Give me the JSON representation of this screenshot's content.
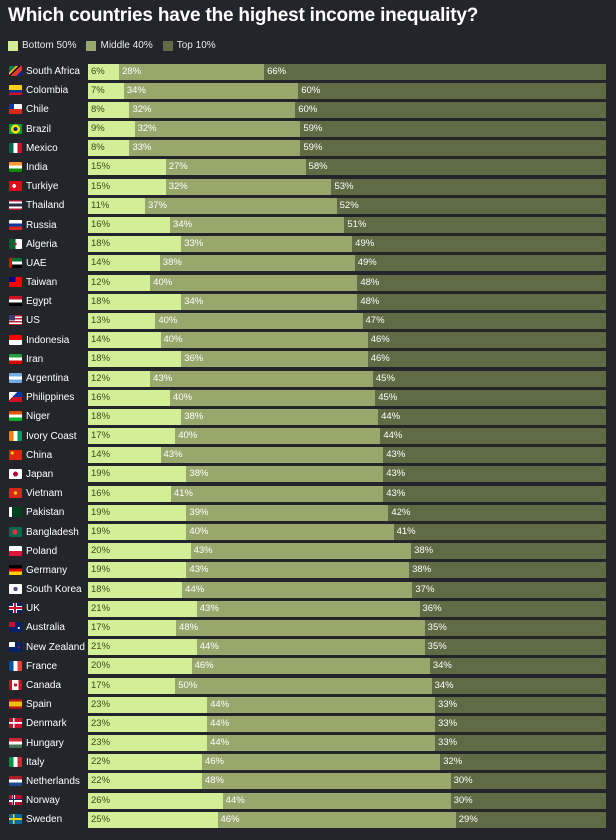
{
  "title": "Which countries have the highest income inequality?",
  "legend": [
    {
      "label": "Bottom 50%",
      "color": "#d2ef98"
    },
    {
      "label": "Middle 40%",
      "color": "#98a86c"
    },
    {
      "label": "Top 10%",
      "color": "#5f6b45"
    }
  ],
  "chart_data": {
    "type": "bar",
    "orientation": "horizontal",
    "stacked": true,
    "title": "Which countries have the highest income inequality?",
    "series_names": [
      "Bottom 50%",
      "Middle 40%",
      "Top 10%"
    ],
    "rows": [
      {
        "country": "South Africa",
        "bottom": "6%",
        "middle": "28%",
        "top": "66%"
      },
      {
        "country": "Colombia",
        "bottom": "7%",
        "middle": "34%",
        "top": "60%"
      },
      {
        "country": "Chile",
        "bottom": "8%",
        "middle": "32%",
        "top": "60%"
      },
      {
        "country": "Brazil",
        "bottom": "9%",
        "middle": "32%",
        "top": "59%"
      },
      {
        "country": "Mexico",
        "bottom": "8%",
        "middle": "33%",
        "top": "59%"
      },
      {
        "country": "India",
        "bottom": "15%",
        "middle": "27%",
        "top": "58%"
      },
      {
        "country": "Turkiye",
        "bottom": "15%",
        "middle": "32%",
        "top": "53%"
      },
      {
        "country": "Thailand",
        "bottom": "11%",
        "middle": "37%",
        "top": "52%"
      },
      {
        "country": "Russia",
        "bottom": "16%",
        "middle": "34%",
        "top": "51%"
      },
      {
        "country": "Algeria",
        "bottom": "18%",
        "middle": "33%",
        "top": "49%"
      },
      {
        "country": "UAE",
        "bottom": "14%",
        "middle": "38%",
        "top": "49%"
      },
      {
        "country": "Taiwan",
        "bottom": "12%",
        "middle": "40%",
        "top": "48%"
      },
      {
        "country": "Egypt",
        "bottom": "18%",
        "middle": "34%",
        "top": "48%"
      },
      {
        "country": "US",
        "bottom": "13%",
        "middle": "40%",
        "top": "47%"
      },
      {
        "country": "Indonesia",
        "bottom": "14%",
        "middle": "40%",
        "top": "46%"
      },
      {
        "country": "Iran",
        "bottom": "18%",
        "middle": "36%",
        "top": "46%"
      },
      {
        "country": "Argentina",
        "bottom": "12%",
        "middle": "43%",
        "top": "45%"
      },
      {
        "country": "Philippines",
        "bottom": "16%",
        "middle": "40%",
        "top": "45%"
      },
      {
        "country": "Niger",
        "bottom": "18%",
        "middle": "38%",
        "top": "44%"
      },
      {
        "country": "Ivory Coast",
        "bottom": "17%",
        "middle": "40%",
        "top": "44%"
      },
      {
        "country": "China",
        "bottom": "14%",
        "middle": "43%",
        "top": "43%"
      },
      {
        "country": "Japan",
        "bottom": "19%",
        "middle": "38%",
        "top": "43%"
      },
      {
        "country": "Vietnam",
        "bottom": "16%",
        "middle": "41%",
        "top": "43%"
      },
      {
        "country": "Pakistan",
        "bottom": "19%",
        "middle": "39%",
        "top": "42%"
      },
      {
        "country": "Bangladesh",
        "bottom": "19%",
        "middle": "40%",
        "top": "41%"
      },
      {
        "country": "Poland",
        "bottom": "20%",
        "middle": "43%",
        "top": "38%"
      },
      {
        "country": "Germany",
        "bottom": "19%",
        "middle": "43%",
        "top": "38%"
      },
      {
        "country": "South Korea",
        "bottom": "18%",
        "middle": "44%",
        "top": "37%"
      },
      {
        "country": "UK",
        "bottom": "21%",
        "middle": "43%",
        "top": "36%"
      },
      {
        "country": "Australia",
        "bottom": "17%",
        "middle": "48%",
        "top": "35%"
      },
      {
        "country": "New Zealand",
        "bottom": "21%",
        "middle": "44%",
        "top": "35%"
      },
      {
        "country": "France",
        "bottom": "20%",
        "middle": "46%",
        "top": "34%"
      },
      {
        "country": "Canada",
        "bottom": "17%",
        "middle": "50%",
        "top": "34%"
      },
      {
        "country": "Spain",
        "bottom": "23%",
        "middle": "44%",
        "top": "33%"
      },
      {
        "country": "Denmark",
        "bottom": "23%",
        "middle": "44%",
        "top": "33%"
      },
      {
        "country": "Hungary",
        "bottom": "23%",
        "middle": "44%",
        "top": "33%"
      },
      {
        "country": "Italy",
        "bottom": "22%",
        "middle": "46%",
        "top": "32%"
      },
      {
        "country": "Netherlands",
        "bottom": "22%",
        "middle": "48%",
        "top": "30%"
      },
      {
        "country": "Norway",
        "bottom": "26%",
        "middle": "44%",
        "top": "30%"
      },
      {
        "country": "Sweden",
        "bottom": "25%",
        "middle": "46%",
        "top": "29%"
      }
    ]
  }
}
